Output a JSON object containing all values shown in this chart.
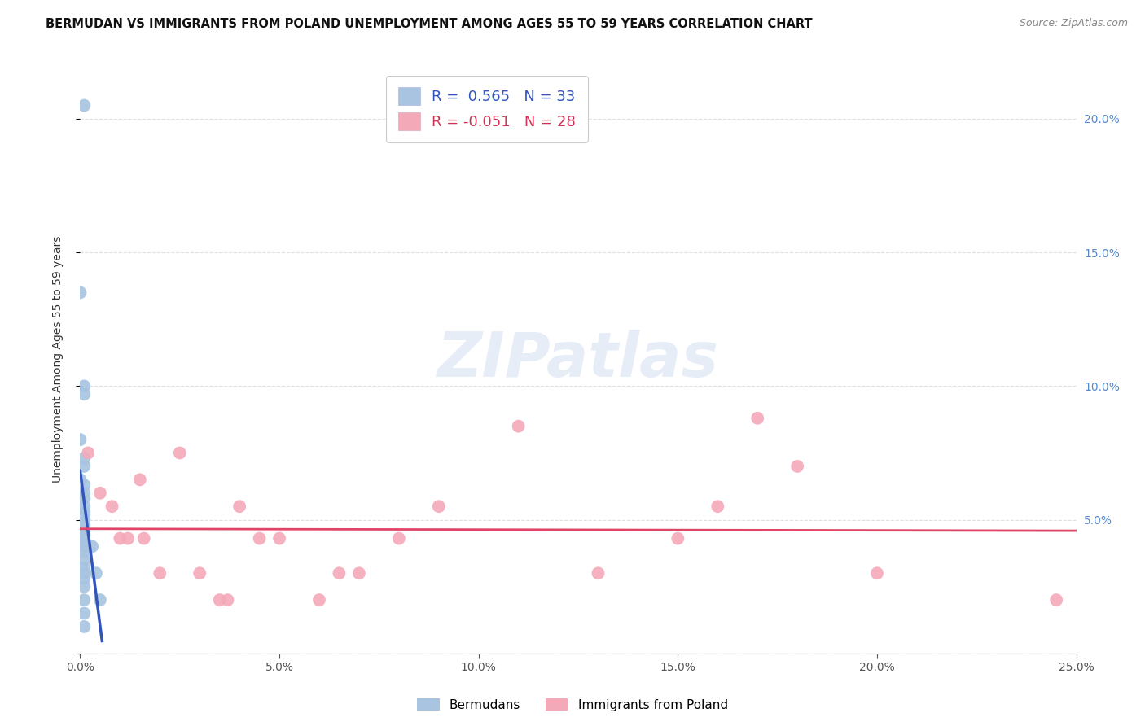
{
  "title": "BERMUDAN VS IMMIGRANTS FROM POLAND UNEMPLOYMENT AMONG AGES 55 TO 59 YEARS CORRELATION CHART",
  "source": "Source: ZipAtlas.com",
  "ylabel": "Unemployment Among Ages 55 to 59 years",
  "xlim": [
    0.0,
    0.25
  ],
  "ylim": [
    0.0,
    0.22
  ],
  "legend1_R": "0.565",
  "legend1_N": "33",
  "legend2_R": "-0.051",
  "legend2_N": "28",
  "blue_scatter_color": "#a8c4e0",
  "pink_scatter_color": "#f4a9b8",
  "blue_line_color": "#3355bb",
  "pink_line_color": "#e04466",
  "blue_scatter": [
    [
      0.001,
      0.205
    ],
    [
      0.0,
      0.135
    ],
    [
      0.001,
      0.1
    ],
    [
      0.001,
      0.097
    ],
    [
      0.0,
      0.08
    ],
    [
      0.001,
      0.073
    ],
    [
      0.001,
      0.07
    ],
    [
      0.0,
      0.065
    ],
    [
      0.001,
      0.063
    ],
    [
      0.001,
      0.06
    ],
    [
      0.001,
      0.058
    ],
    [
      0.001,
      0.055
    ],
    [
      0.001,
      0.053
    ],
    [
      0.001,
      0.052
    ],
    [
      0.001,
      0.05
    ],
    [
      0.001,
      0.048
    ],
    [
      0.001,
      0.047
    ],
    [
      0.001,
      0.045
    ],
    [
      0.001,
      0.044
    ],
    [
      0.001,
      0.042
    ],
    [
      0.001,
      0.04
    ],
    [
      0.001,
      0.038
    ],
    [
      0.001,
      0.035
    ],
    [
      0.001,
      0.032
    ],
    [
      0.001,
      0.03
    ],
    [
      0.001,
      0.028
    ],
    [
      0.001,
      0.025
    ],
    [
      0.001,
      0.02
    ],
    [
      0.001,
      0.015
    ],
    [
      0.001,
      0.01
    ],
    [
      0.003,
      0.04
    ],
    [
      0.004,
      0.03
    ],
    [
      0.005,
      0.02
    ]
  ],
  "pink_scatter": [
    [
      0.002,
      0.075
    ],
    [
      0.005,
      0.06
    ],
    [
      0.008,
      0.055
    ],
    [
      0.01,
      0.043
    ],
    [
      0.012,
      0.043
    ],
    [
      0.015,
      0.065
    ],
    [
      0.016,
      0.043
    ],
    [
      0.02,
      0.03
    ],
    [
      0.025,
      0.075
    ],
    [
      0.03,
      0.03
    ],
    [
      0.035,
      0.02
    ],
    [
      0.037,
      0.02
    ],
    [
      0.04,
      0.055
    ],
    [
      0.045,
      0.043
    ],
    [
      0.05,
      0.043
    ],
    [
      0.06,
      0.02
    ],
    [
      0.065,
      0.03
    ],
    [
      0.07,
      0.03
    ],
    [
      0.08,
      0.043
    ],
    [
      0.09,
      0.055
    ],
    [
      0.11,
      0.085
    ],
    [
      0.13,
      0.03
    ],
    [
      0.15,
      0.043
    ],
    [
      0.16,
      0.055
    ],
    [
      0.17,
      0.088
    ],
    [
      0.18,
      0.07
    ],
    [
      0.2,
      0.03
    ],
    [
      0.245,
      0.02
    ]
  ],
  "watermark": "ZIPatlas",
  "background_color": "#ffffff",
  "grid_color": "#e0e0e0",
  "title_fontsize": 10.5,
  "source_fontsize": 9,
  "axis_label_fontsize": 10,
  "tick_fontsize": 10
}
